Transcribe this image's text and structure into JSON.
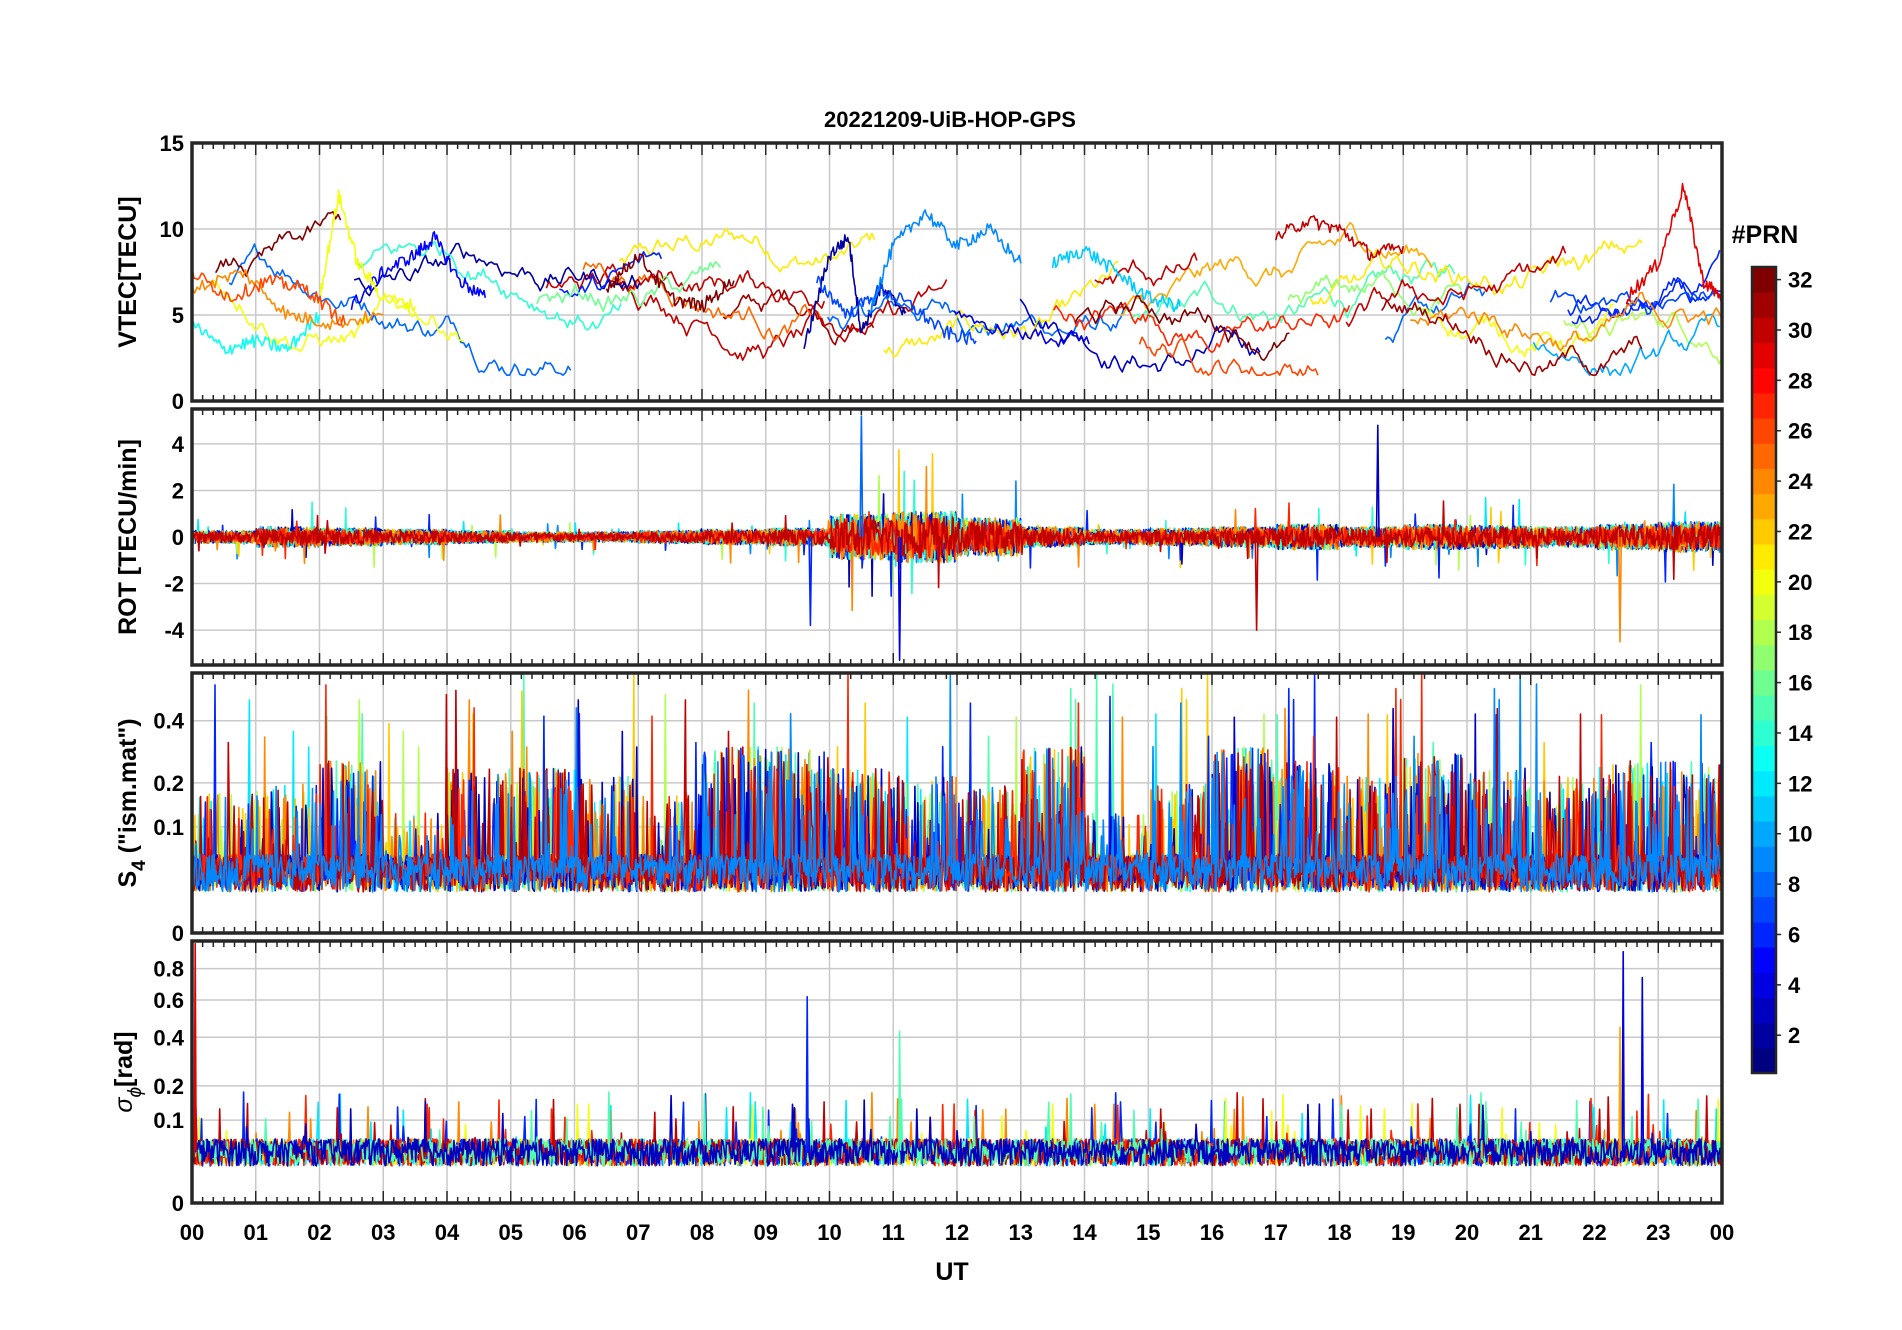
{
  "figure": {
    "title": "20221209-UiB-HOP-GPS",
    "xlabel": "UT",
    "x_ticks": [
      "00",
      "01",
      "02",
      "03",
      "04",
      "05",
      "06",
      "07",
      "08",
      "09",
      "10",
      "11",
      "12",
      "13",
      "14",
      "15",
      "16",
      "17",
      "18",
      "19",
      "20",
      "21",
      "22",
      "23",
      "00"
    ]
  },
  "colorbar": {
    "title": "#PRN",
    "colormap": "jet",
    "range": [
      1,
      32
    ],
    "ticks": [
      "2",
      "4",
      "6",
      "8",
      "10",
      "12",
      "14",
      "16",
      "18",
      "20",
      "22",
      "24",
      "26",
      "28",
      "30",
      "32"
    ]
  },
  "chart_data": [
    {
      "type": "line",
      "panel": "vtec",
      "ylabel": "VTEC[TECU]",
      "ylim": [
        0,
        15
      ],
      "y_ticks": [
        "0",
        "5",
        "10",
        "15"
      ],
      "x_unit": "hour UT",
      "xlim": [
        0,
        24
      ],
      "series": [
        {
          "prn": 2,
          "x": [
            9.6,
            10.0,
            10.3,
            10.5,
            10.8,
            11.2
          ],
          "y": [
            3.0,
            8.5,
            9.5,
            4.0,
            6.5,
            5.2
          ]
        },
        {
          "prn": 5,
          "x": [
            2.5,
            3.0,
            3.5,
            3.8,
            4.2,
            4.6
          ],
          "y": [
            5.5,
            7.5,
            8.5,
            9.5,
            7.0,
            6.0
          ]
        },
        {
          "prn": 7,
          "x": [
            9.8,
            10.3,
            10.8,
            11.3,
            11.8,
            12.3
          ],
          "y": [
            7.0,
            5.0,
            6.5,
            5.5,
            4.0,
            3.5
          ]
        },
        {
          "prn": 9,
          "x": [
            10.6,
            11.0,
            11.5,
            12.0,
            12.5,
            13.0
          ],
          "y": [
            5.0,
            9.0,
            11.0,
            9.0,
            10.0,
            8.0
          ]
        },
        {
          "prn": 11,
          "x": [
            13.5,
            14.0,
            14.5,
            15.0,
            15.5
          ],
          "y": [
            8.0,
            8.8,
            7.5,
            6.0,
            5.5
          ]
        },
        {
          "prn": 13,
          "x": [
            0.0,
            0.5,
            1.0,
            1.5,
            2.0
          ],
          "y": [
            4.5,
            3.0,
            3.5,
            3.0,
            5.0
          ]
        },
        {
          "prn": 20,
          "x": [
            2.0,
            2.3,
            2.6,
            3.0,
            3.5
          ],
          "y": [
            6.0,
            12.0,
            8.0,
            6.0,
            5.5
          ]
        },
        {
          "prn": 24,
          "x": [
            0.0,
            0.8,
            1.5,
            2.2,
            3.0
          ],
          "y": [
            6.5,
            7.5,
            5.0,
            4.5,
            5.0
          ]
        },
        {
          "prn": 26,
          "x": [
            0.0,
            0.6,
            1.2,
            1.8,
            2.4
          ],
          "y": [
            7.5,
            6.0,
            7.0,
            6.5,
            4.5
          ]
        },
        {
          "prn": 30,
          "x": [
            17.0,
            17.5,
            18.0,
            18.5,
            19.0
          ],
          "y": [
            9.5,
            10.5,
            10.0,
            8.5,
            9.0
          ]
        },
        {
          "prn": 32,
          "x": [
            6.5,
            7.0,
            7.5,
            8.0,
            8.5
          ],
          "y": [
            6.5,
            8.5,
            6.0,
            5.5,
            7.0
          ]
        },
        {
          "prn": 29,
          "x": [
            22.5,
            23.0,
            23.4,
            23.7,
            24.0
          ],
          "y": [
            6.0,
            8.0,
            12.5,
            7.0,
            6.0
          ]
        }
      ]
    },
    {
      "type": "line",
      "panel": "rot",
      "ylabel": "ROT [TECU/min]",
      "ylim": [
        -5.5,
        5.5
      ],
      "y_ticks": [
        "-4",
        "-2",
        "0",
        "2",
        "4"
      ],
      "x_unit": "hour UT",
      "xlim": [
        0,
        24
      ],
      "noise_level_by_hour": [
        0.5,
        0.8,
        0.7,
        0.6,
        0.5,
        0.4,
        0.4,
        0.5,
        0.6,
        0.7,
        1.8,
        2.0,
        1.5,
        0.8,
        0.6,
        0.7,
        0.8,
        1.0,
        0.8,
        1.0,
        0.9,
        0.8,
        1.0,
        1.2
      ],
      "peaks": [
        {
          "x": 10.5,
          "y": 5.2,
          "prn": 8
        },
        {
          "x": 11.1,
          "y": -5.3,
          "prn": 4
        },
        {
          "x": 9.7,
          "y": -3.8,
          "prn": 6
        },
        {
          "x": 16.7,
          "y": -4.0,
          "prn": 30
        },
        {
          "x": 22.4,
          "y": -4.5,
          "prn": 24
        },
        {
          "x": 18.6,
          "y": 4.8,
          "prn": 3
        }
      ]
    },
    {
      "type": "line",
      "panel": "s4",
      "ylabel": "S4 (\"ism.mat\")",
      "ylabel_main": "S",
      "ylabel_sub": "4",
      "ylabel_rest": " (\"ism.mat\")",
      "ylim": [
        0,
        0.6
      ],
      "y_ticks": [
        "0",
        "0.1",
        "0.2",
        "0.4"
      ],
      "y_scale": "sqrt",
      "x_unit": "hour UT",
      "xlim": [
        0,
        24
      ],
      "activity_by_hour": [
        0.3,
        0.35,
        0.5,
        0.2,
        0.45,
        0.45,
        0.4,
        0.3,
        0.6,
        0.6,
        0.45,
        0.4,
        0.35,
        0.6,
        0.2,
        0.35,
        0.6,
        0.5,
        0.4,
        0.55,
        0.45,
        0.4,
        0.5,
        0.5
      ]
    },
    {
      "type": "line",
      "panel": "sigma_phi",
      "ylabel": "σϕ[rad]",
      "ylabel_main": "σ",
      "ylabel_sub": "ϕ",
      "ylabel_rest": "[rad]",
      "ylim": [
        0,
        1.0
      ],
      "y_ticks": [
        "0",
        "0.1",
        "0.2",
        "0.4",
        "0.6",
        "0.8"
      ],
      "y_scale": "sqrt",
      "x_unit": "hour UT",
      "xlim": [
        0,
        24
      ],
      "spikes": [
        {
          "x": 9.65,
          "y": 0.62,
          "prn": 6
        },
        {
          "x": 11.1,
          "y": 0.43,
          "prn": 15
        },
        {
          "x": 22.45,
          "y": 0.92,
          "prn": 4
        },
        {
          "x": 22.75,
          "y": 0.74,
          "prn": 4
        },
        {
          "x": 22.4,
          "y": 0.45,
          "prn": 23
        },
        {
          "x": 0.05,
          "y": 0.98,
          "prn": 29
        }
      ]
    }
  ]
}
